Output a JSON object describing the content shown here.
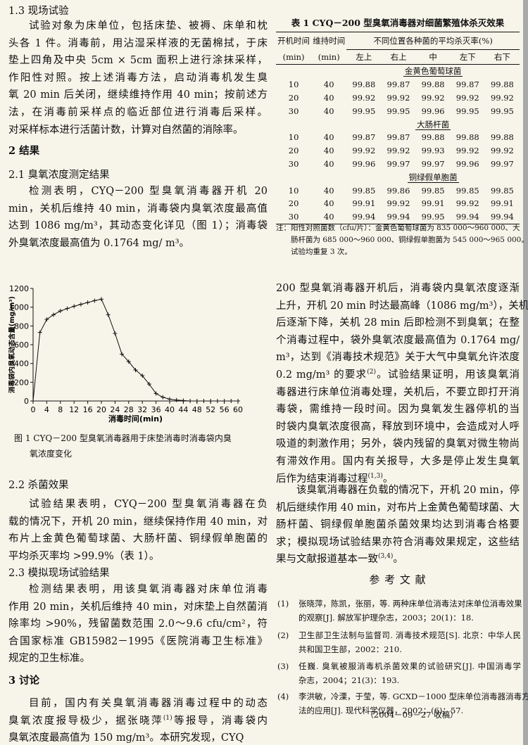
{
  "left": [
    {
      "heading": "1.3 现场试验"
    },
    {
      "paragraph": [
        "试验对象为床单位，包括床垫、被褥、床单和枕",
        "头各 1 件。消毒前，用沾湿采样液的无菌棉拭，于床",
        "垫上四角及中央 5cm × 5cm 面积上进行涂抹采样，",
        "作阳性对照。按上述消毒方法，启动消毒机发生臭",
        "氧 20 min 后关闭，继续维持作用 40 min；按前述方",
        "法，在消毒前采样点的临近部位进行消毒后采样。",
        "对采样标本进行活菌计数，计算对自然菌的消除率。"
      ]
    },
    {
      "heading": "2  结果"
    },
    {
      "heading": "2.1 臭氧浓度测定结果"
    },
    {
      "paragraph": [
        "检测表明，CYQ－200 型臭氧消毒器开机 20",
        "min，关机后维持 40 min，消毒袋内臭氧浓度最高值",
        "达到 1086 mg/m³，其动态变化详见（图 1）；消毒袋",
        "外臭氧浓度最高值为 0.1764 mg/ m³。"
      ]
    },
    {
      "caption": [
        "图 1 CYQ－200 型臭氧消毒器用于床垫消毒时消毒袋内臭",
        "氧浓度变化"
      ]
    },
    {
      "heading": "2.2 杀菌效果"
    },
    {
      "paragraph": [
        "试验结果表明，CYQ－200 型臭氧消毒器在负",
        "载的情况下，开机 20 min，继续保持作用 40 min，对",
        "布片上金黄色葡萄球菌、大肠杆菌、铜绿假单胞菌的",
        "平均杀灭率均 >99.9%（表 1）。"
      ]
    },
    {
      "heading": "2.3 模拟现场试验结果"
    },
    {
      "paragraph": [
        "检测结果表明，用该臭氧消毒器对床单位消毒",
        "作用 20 min，关机后维持 40 min，对床垫上自然菌消",
        "除率均 >90%，残留菌数范围 2.0～9.6 cfu/cm²，符",
        "合国家标准 GB15982－1995《医院消毒卫生标准》",
        "规定的卫生标准。"
      ]
    },
    {
      "heading": "3  讨论"
    },
    {
      "paragraph": [
        "目前，国内有关臭氧消毒器消毒过程中的动态",
        [
          "臭氧浓度报导极少，据张晓萍",
          {
            "sup": "(1)"
          },
          "等报导，消毒袋内"
        ],
        "臭氧浓度最高值为 150 mg/m³。本研究发现，CYQ"
      ]
    }
  ],
  "right": [
    {
      "paragraph": [
        "200 型臭氧消毒器开机后，消毒袋内臭氧浓度逐渐",
        "上升，开机 20 min 时达最高峰（1086 mg/m³），关机",
        "后逐渐下降，关机 28 min 后即检测不到臭氧；在整",
        "个消毒过程中，袋外臭氧浓度最高值为 0.1764 mg/",
        "m³，达到《消毒技术规范》关于大气中臭氧允许浓度",
        [
          "0.2 mg/m³ 的要求",
          {
            "sup": "(2)"
          },
          "。试验结果证明，用该臭氧消"
        ],
        "毒器进行床单位消毒处理，关机后，不要立即打开消",
        "毒袋，需维持一段时间。因为臭氧发生器停机的当",
        "时袋内臭氧浓度很高，释放到环境中，会造成对人呼",
        "吸道的刺激作用；另外，袋内残留的臭氧对微生物尚",
        "有滞效作用。国内有关报导，大多是停止发生臭氧",
        [
          "后作为结束消毒过程",
          {
            "sup": "(1,3)"
          },
          "。"
        ]
      ]
    },
    {
      "paragraph": [
        "该臭氧消毒器在负载的情况下，开机 20 min，停",
        "机后继续作用 40 min，对布片上金黄色葡萄球菌、大",
        "肠杆菌、铜绿假单胞菌杀菌效果均达到消毒合格要",
        "求；模拟现场试验结果亦符合消毒效果规定，这些结",
        [
          "果与文献报道基本一致",
          {
            "sup": "(3,4)"
          },
          "。"
        ]
      ]
    },
    {
      "heading": "参 考 文 献"
    }
  ],
  "references": [
    {
      "number": "(1)",
      "lines": [
        "张晓萍，陈凯，张丽，等. 两种床单位消毒法对床单位消毒效果",
        "的观察[J]. 解放军护理杂志，2003；20(1)：18."
      ]
    },
    {
      "number": "(2)",
      "lines": [
        "卫生部卫生法制与监督司. 消毒技术规范[S]. 北京：中华人民",
        "共和国卫生部，2002：210."
      ]
    },
    {
      "number": "(3)",
      "lines": [
        "任巍. 臭氧被服消毒机杀菌效果的试验研究[J]. 中国消毒学",
        "杂志，2004；21(3)：193."
      ]
    },
    {
      "number": "(4)",
      "lines": [
        "李洪敏，冷溧，于莹，等. GCXD－1000 型床单位消毒器消毒方",
        "法的应用[J]. 现代科学仪器，2002；(6)：57."
      ]
    }
  ],
  "received": "（2004－09－27 收稿）",
  "table": {
    "title": "表 1 CYQ－200 型臭氧消毒器对细菌繁殖体杀灭效果",
    "header": {
      "col1": [
        "开机时间",
        "(min)"
      ],
      "col2": [
        "维持时间",
        "(min)"
      ],
      "span": "不同位置各种菌的平均杀灭率(%)",
      "positions": [
        "左上",
        "右上",
        "中",
        "左下",
        "右下"
      ]
    },
    "groups": [
      {
        "name": "金黄色葡萄球菌",
        "rows": [
          [
            "10",
            "40",
            "99.88",
            "99.87",
            "99.88",
            "99.87",
            "99.88"
          ],
          [
            "20",
            "40",
            "99.92",
            "99.92",
            "99.92",
            "99.92",
            "99.92"
          ],
          [
            "30",
            "40",
            "99.95",
            "99.95",
            "99.96",
            "99.95",
            "99.95"
          ]
        ]
      },
      {
        "name": "大肠杆菌",
        "rows": [
          [
            "10",
            "40",
            "99.87",
            "99.87",
            "99.88",
            "99.88",
            "99.88"
          ],
          [
            "20",
            "40",
            "99.92",
            "99.92",
            "99.93",
            "99.92",
            "99.92"
          ],
          [
            "30",
            "40",
            "99.96",
            "99.97",
            "99.97",
            "99.96",
            "99.97"
          ]
        ]
      },
      {
        "name": "铜绿假单胞菌",
        "rows": [
          [
            "10",
            "40",
            "99.85",
            "99.86",
            "99.85",
            "99.85",
            "99.85"
          ],
          [
            "20",
            "40",
            "99.91",
            "99.92",
            "99.91",
            "99.92",
            "99.91"
          ],
          [
            "30",
            "40",
            "99.94",
            "99.94",
            "99.95",
            "99.94",
            "99.94"
          ]
        ]
      }
    ],
    "note": [
      "注：阳性对照菌数（cfu/片）：金黄色葡萄球菌为 835 000～960 000、大",
      "肠杆菌为 685 000～960 000、铜绿假单胞菌为 545 000～965 000。",
      "试验均重复 3 次。"
    ]
  },
  "chart_data": {
    "type": "line",
    "xlabel": "消毒时间(min)",
    "ylabel": "消毒袋内臭氧动态含量(mg/m³)",
    "x": [
      0,
      2,
      4,
      6,
      8,
      10,
      12,
      14,
      16,
      18,
      20,
      22,
      24,
      26,
      28,
      30,
      32,
      34,
      36,
      38,
      40,
      42,
      44,
      46,
      48,
      50,
      52,
      54,
      56,
      58,
      60
    ],
    "values": [
      0,
      730,
      870,
      920,
      960,
      985,
      1010,
      1030,
      1050,
      1070,
      1086,
      920,
      720,
      500,
      420,
      330,
      270,
      180,
      80,
      40,
      20,
      10,
      5,
      0,
      0,
      0,
      0,
      0,
      0,
      0,
      0
    ],
    "color": "#111111",
    "marker": "+",
    "xlim": [
      0,
      60
    ],
    "xticks": [
      0,
      4,
      8,
      12,
      16,
      20,
      24,
      28,
      32,
      36,
      40,
      44,
      48,
      52,
      56,
      60
    ],
    "ylim": [
      0,
      1200
    ],
    "yticks": [
      0,
      200,
      400,
      600,
      800,
      1000,
      1200
    ]
  }
}
